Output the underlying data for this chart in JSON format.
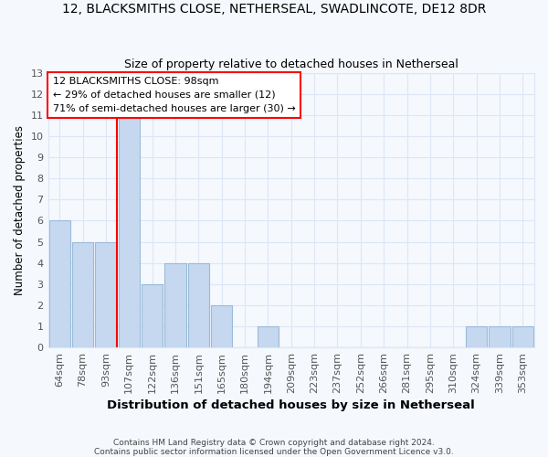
{
  "title": "12, BLACKSMITHS CLOSE, NETHERSEAL, SWADLINCOTE, DE12 8DR",
  "subtitle": "Size of property relative to detached houses in Netherseal",
  "xlabel": "Distribution of detached houses by size in Netherseal",
  "ylabel": "Number of detached properties",
  "categories": [
    "64sqm",
    "78sqm",
    "93sqm",
    "107sqm",
    "122sqm",
    "136sqm",
    "151sqm",
    "165sqm",
    "180sqm",
    "194sqm",
    "209sqm",
    "223sqm",
    "237sqm",
    "252sqm",
    "266sqm",
    "281sqm",
    "295sqm",
    "310sqm",
    "324sqm",
    "339sqm",
    "353sqm"
  ],
  "values": [
    6,
    5,
    5,
    11,
    3,
    4,
    4,
    2,
    0,
    1,
    0,
    0,
    0,
    0,
    0,
    0,
    0,
    0,
    1,
    1,
    1
  ],
  "bar_color": "#c5d8f0",
  "bar_edge_color": "#9abbd8",
  "red_line_after_index": 2,
  "annotation_line1": "12 BLACKSMITHS CLOSE: 98sqm",
  "annotation_line2": "← 29% of detached houses are smaller (12)",
  "annotation_line3": "71% of semi-detached houses are larger (30) →",
  "ylim": [
    0,
    13
  ],
  "yticks": [
    0,
    1,
    2,
    3,
    4,
    5,
    6,
    7,
    8,
    9,
    10,
    11,
    12,
    13
  ],
  "footer_line1": "Contains HM Land Registry data © Crown copyright and database right 2024.",
  "footer_line2": "Contains public sector information licensed under the Open Government Licence v3.0.",
  "bg_color": "#f5f8fd",
  "grid_color": "#dce6f5",
  "title_fontsize": 10,
  "subtitle_fontsize": 9,
  "xlabel_fontsize": 9.5,
  "ylabel_fontsize": 8.5,
  "tick_fontsize": 8,
  "annot_fontsize": 8,
  "footer_fontsize": 6.5
}
